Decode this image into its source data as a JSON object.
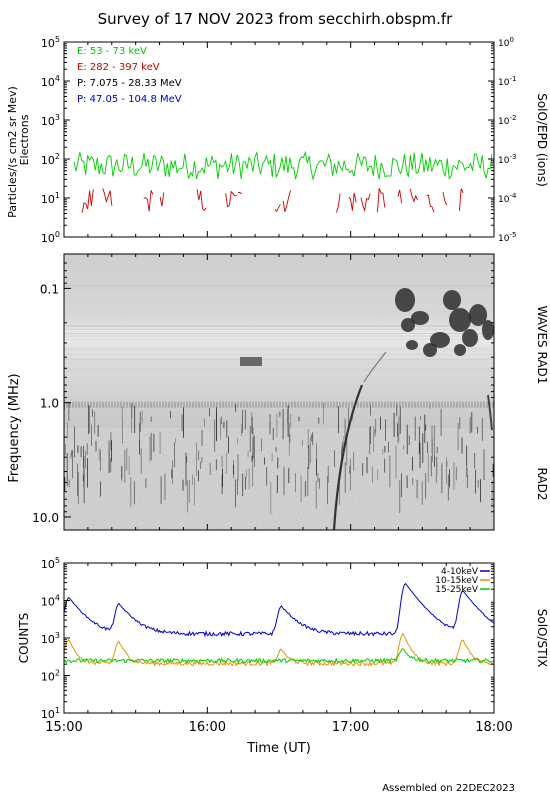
{
  "title": "Survey of 17 NOV 2023 from secchirh.obspm.fr",
  "footer": "Assembled on 22DEC2023",
  "colors": {
    "green": "#00cc00",
    "red": "#cc0000",
    "black": "#000000",
    "blue": "#0000cc",
    "orange": "#e69500"
  },
  "chart_data": [
    {
      "type": "line",
      "panel": "SolO/EPD",
      "ylabel": "Particles/(s cm2 sr Mev)",
      "ylabel2": "Electrons",
      "right_label": "SolO/EPD (ions)",
      "yscale": "log",
      "ylim": [
        1,
        100000
      ],
      "right_ylim": [
        1e-05,
        1
      ],
      "yticks": [
        "10^0",
        "10^1",
        "10^2",
        "10^3",
        "10^4",
        "10^5"
      ],
      "right_yticks": [
        "10^-5",
        "10^-4",
        "10^-3",
        "10^-2",
        "10^-1",
        "10^0"
      ],
      "xlim": [
        "15:00",
        "18:00"
      ],
      "legend": [
        {
          "label": "E: 53 - 73 keV",
          "color": "#00cc00"
        },
        {
          "label": "E: 282 - 397 keV",
          "color": "#cc0000"
        },
        {
          "label": "P: 7.075 - 28.33 MeV",
          "color": "#000000"
        },
        {
          "label": "P: 47.05 - 104.8 MeV",
          "color": "#0000cc"
        }
      ],
      "series": [
        {
          "name": "E: 53 - 73 keV",
          "typical_range": [
            30,
            150
          ],
          "color": "#00cc00"
        },
        {
          "name": "E: 282 - 397 keV",
          "typical_range": [
            4,
            18
          ],
          "color": "#cc0000"
        }
      ]
    },
    {
      "type": "heatmap",
      "panel": "WAVES",
      "ylabel": "Frequency (MHz)",
      "yscale": "log",
      "ylim": [
        13,
        0.05
      ],
      "yticks": [
        "0.1",
        "1.0",
        "10.0"
      ],
      "xlim": [
        "15:00",
        "18:00"
      ],
      "labels": [
        "WAVES RAD1",
        "RAD2"
      ],
      "band_boundary_mhz": 1.0
    },
    {
      "type": "line",
      "panel": "SolO/STIX",
      "ylabel": "COUNTS",
      "right_label": "SolO/STIX",
      "yscale": "log",
      "ylim": [
        10,
        100000
      ],
      "yticks": [
        "10^1",
        "10^2",
        "10^3",
        "10^4",
        "10^5"
      ],
      "xlabel": "Time (UT)",
      "xlim": [
        "15:00",
        "18:00"
      ],
      "xticks": [
        "15:00",
        "16:00",
        "17:00",
        "18:00"
      ],
      "series": [
        {
          "name": "4-10keV",
          "color": "#0000cc",
          "baseline": 1300,
          "peaks": [
            {
              "t": "15:02",
              "v": 12000
            },
            {
              "t": "15:23",
              "v": 8000
            },
            {
              "t": "16:31",
              "v": 7000
            },
            {
              "t": "17:23",
              "v": 28000
            },
            {
              "t": "17:47",
              "v": 18000
            }
          ]
        },
        {
          "name": "10-15keV",
          "color": "#e69500",
          "baseline": 210,
          "peaks": [
            {
              "t": "15:02",
              "v": 900
            },
            {
              "t": "15:23",
              "v": 800
            },
            {
              "t": "16:31",
              "v": 500
            },
            {
              "t": "17:22",
              "v": 1300
            },
            {
              "t": "17:47",
              "v": 900
            }
          ]
        },
        {
          "name": "15-25keV",
          "color": "#00cc00",
          "baseline": 250,
          "peaks": [
            {
              "t": "17:22",
              "v": 500
            }
          ]
        }
      ]
    }
  ]
}
